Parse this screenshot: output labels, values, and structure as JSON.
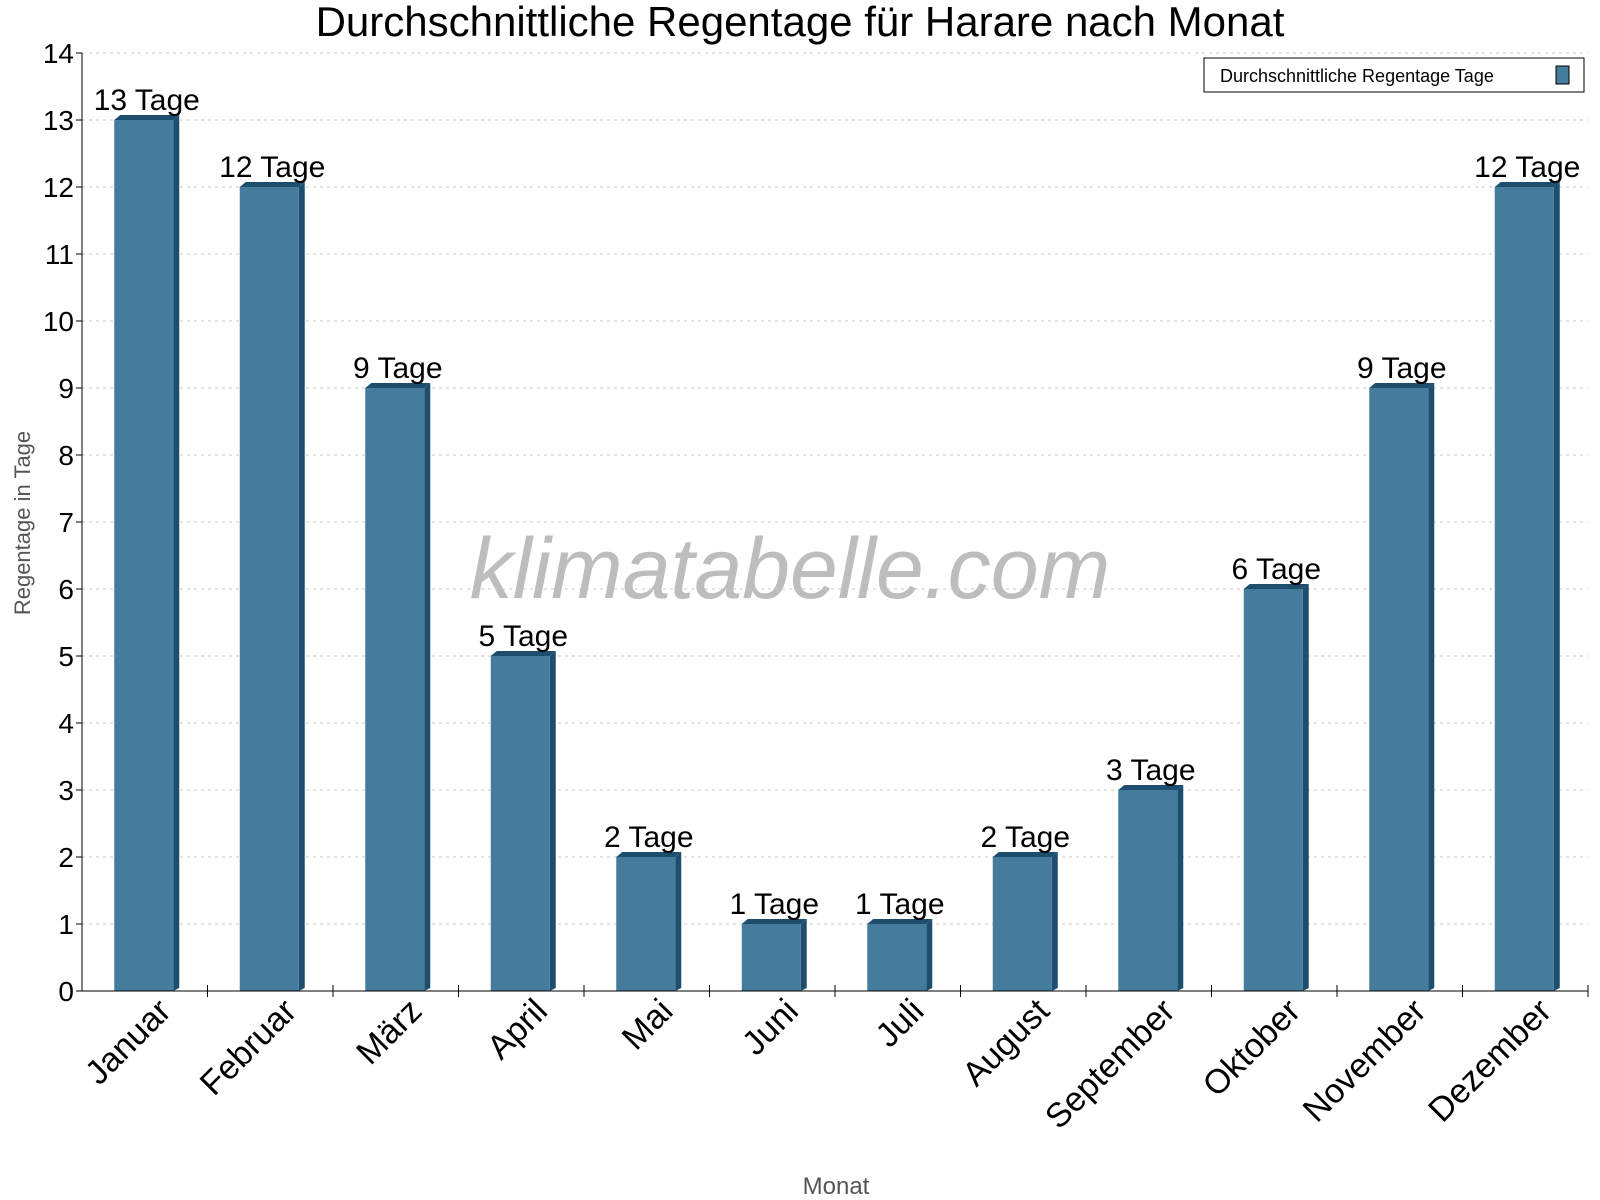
{
  "chart_data": {
    "type": "bar",
    "title": "Durchschnittliche Regentage für Harare nach Monat",
    "xlabel": "Monat",
    "ylabel": "Regentage in Tage",
    "categories": [
      "Januar",
      "Februar",
      "März",
      "April",
      "Mai",
      "Juni",
      "Juli",
      "August",
      "September",
      "Oktober",
      "November",
      "Dezember"
    ],
    "series": [
      {
        "name": "Durchschnittliche Regentage Tage",
        "values": [
          13,
          12,
          9,
          5,
          2,
          1,
          1,
          2,
          3,
          6,
          9,
          12
        ]
      }
    ],
    "value_suffix": " Tage",
    "ylim": [
      0,
      14
    ],
    "yticks": [
      0,
      1,
      2,
      3,
      4,
      5,
      6,
      7,
      8,
      9,
      10,
      11,
      12,
      13,
      14
    ],
    "grid": true,
    "legend": "top-right",
    "watermark": "klimatabelle.com",
    "colors": {
      "bar": "#457b9d",
      "bar_side": "#1d4e6e",
      "grid": "#c8c8c8"
    }
  }
}
